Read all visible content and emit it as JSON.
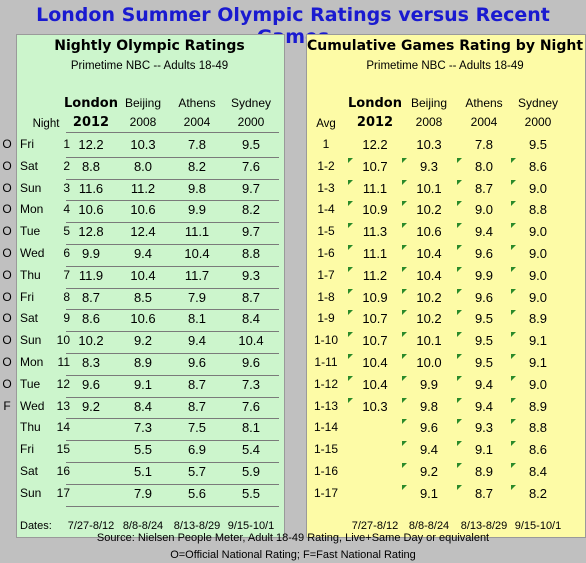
{
  "title": "London Summer Olympic Ratings versus Recent Games",
  "colors": {
    "title": "#1a1ad0",
    "left_panel": "#ccf5cc",
    "right_panel": "#fdfba6",
    "marker": "#2a8a2a"
  },
  "chart_data": [
    {
      "type": "table",
      "title": "Nightly Olympic Ratings",
      "subtitle": "Primetime NBC -- Adults 18-49",
      "columns": [
        {
          "name": "London",
          "year": "2012",
          "bold": true
        },
        {
          "name": "Beijing",
          "year": "2008"
        },
        {
          "name": "Athens",
          "year": "2004"
        },
        {
          "name": "Sydney",
          "year": "2000"
        }
      ],
      "row_header": "Night",
      "rows": [
        {
          "flag": "O",
          "day": "Fri",
          "night": "1",
          "values": [
            "12.2",
            "10.3",
            "7.8",
            "9.5"
          ]
        },
        {
          "flag": "O",
          "day": "Sat",
          "night": "2",
          "values": [
            "8.8",
            "8.0",
            "8.2",
            "7.6"
          ]
        },
        {
          "flag": "O",
          "day": "Sun",
          "night": "3",
          "values": [
            "11.6",
            "11.2",
            "9.8",
            "9.7"
          ]
        },
        {
          "flag": "O",
          "day": "Mon",
          "night": "4",
          "values": [
            "10.6",
            "10.6",
            "9.9",
            "8.2"
          ]
        },
        {
          "flag": "O",
          "day": "Tue",
          "night": "5",
          "values": [
            "12.8",
            "12.4",
            "11.1",
            "9.7"
          ]
        },
        {
          "flag": "O",
          "day": "Wed",
          "night": "6",
          "values": [
            "9.9",
            "9.4",
            "10.4",
            "8.8"
          ]
        },
        {
          "flag": "O",
          "day": "Thu",
          "night": "7",
          "values": [
            "11.9",
            "10.4",
            "11.7",
            "9.3"
          ]
        },
        {
          "flag": "O",
          "day": "Fri",
          "night": "8",
          "values": [
            "8.7",
            "8.5",
            "7.9",
            "8.7"
          ]
        },
        {
          "flag": "O",
          "day": "Sat",
          "night": "9",
          "values": [
            "8.6",
            "10.6",
            "8.1",
            "8.4"
          ]
        },
        {
          "flag": "O",
          "day": "Sun",
          "night": "10",
          "values": [
            "10.2",
            "9.2",
            "9.4",
            "10.4"
          ]
        },
        {
          "flag": "O",
          "day": "Mon",
          "night": "11",
          "values": [
            "8.3",
            "8.9",
            "9.6",
            "9.6"
          ]
        },
        {
          "flag": "O",
          "day": "Tue",
          "night": "12",
          "values": [
            "9.6",
            "9.1",
            "8.7",
            "7.3"
          ]
        },
        {
          "flag": "F",
          "day": "Wed",
          "night": "13",
          "values": [
            "9.2",
            "8.4",
            "8.7",
            "7.6"
          ]
        },
        {
          "flag": "",
          "day": "Thu",
          "night": "14",
          "values": [
            "",
            "7.3",
            "7.5",
            "8.1"
          ]
        },
        {
          "flag": "",
          "day": "Fri",
          "night": "15",
          "values": [
            "",
            "5.5",
            "6.9",
            "5.4"
          ]
        },
        {
          "flag": "",
          "day": "Sat",
          "night": "16",
          "values": [
            "",
            "5.1",
            "5.7",
            "5.9"
          ]
        },
        {
          "flag": "",
          "day": "Sun",
          "night": "17",
          "values": [
            "",
            "7.9",
            "5.6",
            "5.5"
          ]
        }
      ],
      "dates_label": "Dates:",
      "dates": [
        "7/27-8/12",
        "8/8-8/24",
        "8/13-8/29",
        "9/15-10/1"
      ]
    },
    {
      "type": "table",
      "title": "Cumulative Games Rating by Night",
      "subtitle": "Primetime NBC -- Adults 18-49",
      "columns": [
        {
          "name": "London",
          "year": "2012",
          "bold": true
        },
        {
          "name": "Beijing",
          "year": "2008"
        },
        {
          "name": "Athens",
          "year": "2004"
        },
        {
          "name": "Sydney",
          "year": "2000"
        }
      ],
      "row_header": "Avg",
      "rows": [
        {
          "avg": "1",
          "values": [
            "12.2",
            "10.3",
            "7.8",
            "9.5"
          ]
        },
        {
          "avg": "1-2",
          "values": [
            "10.7",
            "9.3",
            "8.0",
            "8.6"
          ]
        },
        {
          "avg": "1-3",
          "values": [
            "11.1",
            "10.1",
            "8.7",
            "9.0"
          ]
        },
        {
          "avg": "1-4",
          "values": [
            "10.9",
            "10.2",
            "9.0",
            "8.8"
          ]
        },
        {
          "avg": "1-5",
          "values": [
            "11.3",
            "10.6",
            "9.4",
            "9.0"
          ]
        },
        {
          "avg": "1-6",
          "values": [
            "11.1",
            "10.4",
            "9.6",
            "9.0"
          ]
        },
        {
          "avg": "1-7",
          "values": [
            "11.2",
            "10.4",
            "9.9",
            "9.0"
          ]
        },
        {
          "avg": "1-8",
          "values": [
            "10.9",
            "10.2",
            "9.6",
            "9.0"
          ]
        },
        {
          "avg": "1-9",
          "values": [
            "10.7",
            "10.2",
            "9.5",
            "8.9"
          ]
        },
        {
          "avg": "1-10",
          "values": [
            "10.7",
            "10.1",
            "9.5",
            "9.1"
          ]
        },
        {
          "avg": "1-11",
          "values": [
            "10.4",
            "10.0",
            "9.5",
            "9.1"
          ]
        },
        {
          "avg": "1-12",
          "values": [
            "10.4",
            "9.9",
            "9.4",
            "9.0"
          ]
        },
        {
          "avg": "1-13",
          "values": [
            "10.3",
            "9.8",
            "9.4",
            "8.9"
          ]
        },
        {
          "avg": "1-14",
          "values": [
            "",
            "9.6",
            "9.3",
            "8.8"
          ]
        },
        {
          "avg": "1-15",
          "values": [
            "",
            "9.4",
            "9.1",
            "8.6"
          ]
        },
        {
          "avg": "1-16",
          "values": [
            "",
            "9.2",
            "8.9",
            "8.4"
          ]
        },
        {
          "avg": "1-17",
          "values": [
            "",
            "9.1",
            "8.7",
            "8.2"
          ]
        }
      ],
      "dates": [
        "7/27-8/12",
        "8/8-8/24",
        "8/13-8/29",
        "9/15-10/1"
      ]
    }
  ],
  "footer": {
    "source": "Source: Nielsen People Meter, Adult 18-49 Rating, Live+Same Day or equivalent",
    "legend": "O=Official National Rating; F=Fast National Rating"
  }
}
